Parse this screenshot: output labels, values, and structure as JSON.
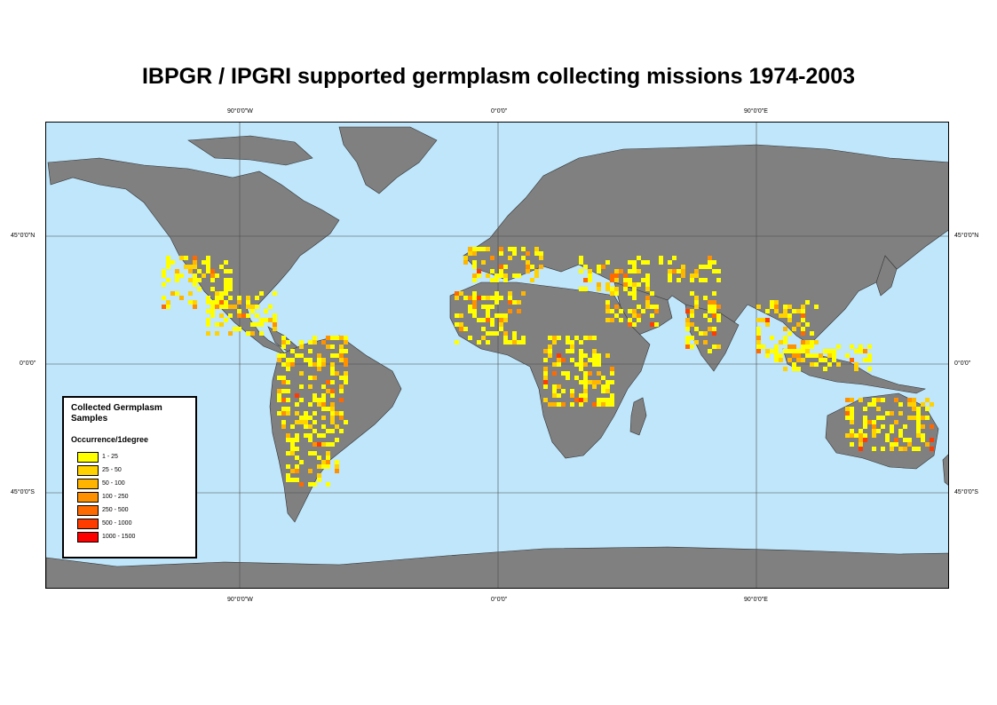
{
  "title": "IBPGR / IPGRI supported germplasm collecting missions 1974-2003",
  "map": {
    "ocean_color": "#bfe6fb",
    "land_color": "#808080",
    "graticule_top_labels": [
      "90°0'0\"W",
      "0°0'0\"",
      "90°0'0\"E"
    ],
    "graticule_bottom_labels": [
      "90°0'0\"W",
      "0°0'0\"",
      "90°0'0\"E"
    ],
    "graticule_left_labels": [
      "45°0'0\"N",
      "0°0'0\"",
      "45°0'0\"S"
    ],
    "graticule_right_labels": [
      "45°0'0\"N",
      "0°0'0\"",
      "45°0'0\"S"
    ]
  },
  "legend": {
    "title_line1": "Collected Germplasm",
    "title_line2": "Samples",
    "subtitle": "Occurrence/1degree",
    "classes": [
      {
        "label": "1 - 25",
        "color": "#ffff00"
      },
      {
        "label": "25 - 50",
        "color": "#ffd200"
      },
      {
        "label": "50 - 100",
        "color": "#ffb400"
      },
      {
        "label": "100 - 250",
        "color": "#ff9000"
      },
      {
        "label": "250 - 500",
        "color": "#ff6a00"
      },
      {
        "label": "500 - 1000",
        "color": "#ff3c00"
      },
      {
        "label": "1000 - 1500",
        "color": "#ff0000"
      }
    ]
  }
}
